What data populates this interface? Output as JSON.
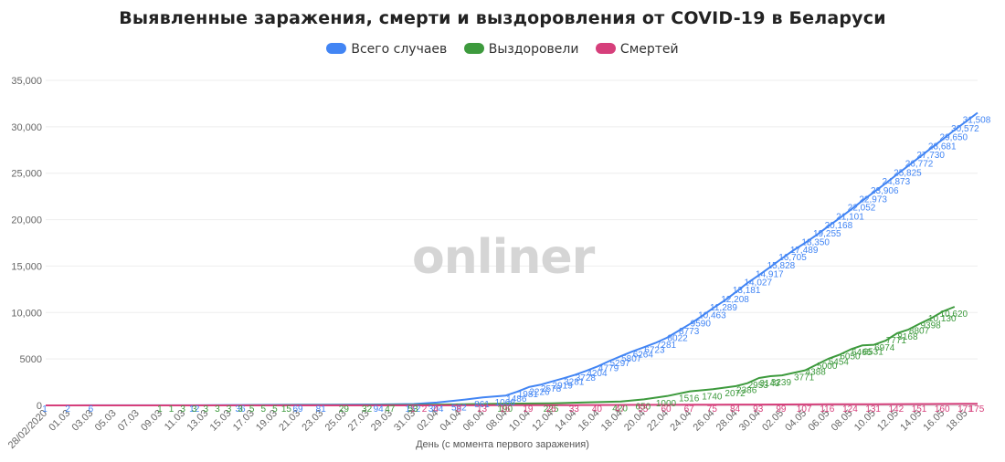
{
  "chart_data": {
    "type": "line",
    "title": "Выявленные заражения, смерти и выздоровления от COVID-19 в Беларуси",
    "xlabel": "День (с момента первого заражения)",
    "ylabel": "",
    "ylim": [
      0,
      35000
    ],
    "y_ticks": [
      "0",
      "5000",
      "10,000",
      "15,000",
      "20,000",
      "25,000",
      "30,000",
      "35,000"
    ],
    "grid": true,
    "legend_position": "top-center",
    "watermark": "onliner",
    "x_tick_labels": [
      "28/02/2020",
      "01.03",
      "03.03",
      "05.03",
      "07.03",
      "09.03",
      "11.03",
      "13.03",
      "15.03",
      "17.03",
      "19.03",
      "21.03",
      "23.03",
      "25.03",
      "27.03",
      "29.03",
      "31.03",
      "02.04",
      "04.04",
      "06.04",
      "08.04",
      "10.04",
      "12.04",
      "14.04",
      "16.04",
      "18.04",
      "20.04",
      "22.04",
      "24.04",
      "26.04",
      "28.04",
      "30.04",
      "02.05",
      "04.05",
      "06.05",
      "08.05",
      "10.05",
      "12.05",
      "14.05",
      "16.05",
      "18.05"
    ],
    "series": [
      {
        "name": "Всего случаев",
        "color": "#4285f4",
        "points": [
          {
            "x": "28/02/2020",
            "y": 1
          },
          {
            "x": "01.03",
            "y": 2
          },
          {
            "x": "03.03",
            "y": 6
          },
          {
            "x": "12.03",
            "y": 12
          },
          {
            "x": "16.03",
            "y": 36
          },
          {
            "x": "21.03",
            "y": 69
          },
          {
            "x": "23.03",
            "y": 81
          },
          {
            "x": "28.03",
            "y": 94
          },
          {
            "x": "31.03",
            "y": 152
          },
          {
            "x": "02.04",
            "y": 304
          },
          {
            "x": "04.04",
            "y": 562
          },
          {
            "x": "06.04",
            "y": 861
          },
          {
            "x": "08.04",
            "y": 1066
          },
          {
            "x": "09.04",
            "y": 1486
          },
          {
            "x": "10.04",
            "y": 1981
          },
          {
            "x": "11.04",
            "y": 2226
          },
          {
            "x": "12.04",
            "y": 2578
          },
          {
            "x": "13.04",
            "y": 2919
          },
          {
            "x": "14.04",
            "y": 3281
          },
          {
            "x": "15.04",
            "y": 3728
          },
          {
            "x": "16.04",
            "y": 4204
          },
          {
            "x": "17.04",
            "y": 4779
          },
          {
            "x": "18.04",
            "y": 5297
          },
          {
            "x": "19.04",
            "y": 5807
          },
          {
            "x": "20.04",
            "y": 6264
          },
          {
            "x": "21.04",
            "y": 6723
          },
          {
            "x": "22.04",
            "y": 7281
          },
          {
            "x": "23.04",
            "y": 8022
          },
          {
            "x": "24.04",
            "y": 8773
          },
          {
            "x": "25.04",
            "y": 9590
          },
          {
            "x": "26.04",
            "y": 10463
          },
          {
            "x": "27.04",
            "y": 11289
          },
          {
            "x": "28.04",
            "y": 12208
          },
          {
            "x": "29.04",
            "y": 13181
          },
          {
            "x": "30.04",
            "y": 14027
          },
          {
            "x": "01.05",
            "y": 14917
          },
          {
            "x": "02.05",
            "y": 15828
          },
          {
            "x": "03.05",
            "y": 16705
          },
          {
            "x": "04.05",
            "y": 17489
          },
          {
            "x": "05.05",
            "y": 18350
          },
          {
            "x": "06.05",
            "y": 19255
          },
          {
            "x": "07.05",
            "y": 20168
          },
          {
            "x": "08.05",
            "y": 21101
          },
          {
            "x": "09.05",
            "y": 22052
          },
          {
            "x": "10.05",
            "y": 22973
          },
          {
            "x": "11.05",
            "y": 23906
          },
          {
            "x": "12.05",
            "y": 24873
          },
          {
            "x": "13.05",
            "y": 25825
          },
          {
            "x": "14.05",
            "y": 26772
          },
          {
            "x": "15.05",
            "y": 27730
          },
          {
            "x": "16.05",
            "y": 28681
          },
          {
            "x": "17.05",
            "y": 29650
          },
          {
            "x": "18.05",
            "y": 30572
          },
          {
            "x": "19.05",
            "y": 31508
          }
        ],
        "labels": [
          "1",
          "2",
          "6",
          "12",
          "36",
          "69",
          "81",
          "94",
          "152",
          "304",
          "562",
          "861",
          "1066",
          "1486",
          "1981",
          "2226",
          "2578",
          "2919",
          "3281",
          "3728",
          "4204",
          "4779",
          "5297",
          "5807",
          "6264",
          "6723",
          "7281",
          "8022",
          "8773",
          "9590",
          "10,463",
          "11,289",
          "12,208",
          "13,181",
          "14,027",
          "14,917",
          "15,828",
          "16,705",
          "17,489",
          "18,350",
          "19,255",
          "20,168",
          "21,101",
          "22,052",
          "22,973",
          "23,906",
          "24,873",
          "25,825",
          "26,772",
          "27,730",
          "28,681",
          "29,650",
          "30,572",
          "31,508"
        ]
      },
      {
        "name": "Выздоровели",
        "color": "#3d9a3d",
        "points": [
          {
            "x": "09.03",
            "y": 1
          },
          {
            "x": "10.03",
            "y": 1
          },
          {
            "x": "11.03",
            "y": 3
          },
          {
            "x": "12.03",
            "y": 3
          },
          {
            "x": "13.03",
            "y": 3
          },
          {
            "x": "14.03",
            "y": 3
          },
          {
            "x": "15.03",
            "y": 3
          },
          {
            "x": "16.03",
            "y": 3
          },
          {
            "x": "17.03",
            "y": 5
          },
          {
            "x": "18.03",
            "y": 5
          },
          {
            "x": "19.03",
            "y": 5
          },
          {
            "x": "20.03",
            "y": 15
          },
          {
            "x": "25.03",
            "y": 29
          },
          {
            "x": "27.03",
            "y": 32
          },
          {
            "x": "29.03",
            "y": 47
          },
          {
            "x": "31.03",
            "y": 53
          },
          {
            "x": "08.04",
            "y": 190
          },
          {
            "x": "12.04",
            "y": 225
          },
          {
            "x": "18.04",
            "y": 420
          },
          {
            "x": "20.04",
            "y": 650
          },
          {
            "x": "22.04",
            "y": 1000
          },
          {
            "x": "24.04",
            "y": 1516
          },
          {
            "x": "26.04",
            "y": 1740
          },
          {
            "x": "28.04",
            "y": 2072
          },
          {
            "x": "29.04",
            "y": 2386
          },
          {
            "x": "30.04",
            "y": 2953
          },
          {
            "x": "01.05",
            "y": 3143
          },
          {
            "x": "02.05",
            "y": 3239
          },
          {
            "x": "04.05",
            "y": 3771
          },
          {
            "x": "05.05",
            "y": 4388
          },
          {
            "x": "06.05",
            "y": 5000
          },
          {
            "x": "07.05",
            "y": 5454
          },
          {
            "x": "08.05",
            "y": 6050
          },
          {
            "x": "09.05",
            "y": 6465
          },
          {
            "x": "10.05",
            "y": 6531
          },
          {
            "x": "11.05",
            "y": 6974
          },
          {
            "x": "12.05",
            "y": 7771
          },
          {
            "x": "13.05",
            "y": 8168
          },
          {
            "x": "14.05",
            "y": 8807
          },
          {
            "x": "15.05",
            "y": 9398
          },
          {
            "x": "16.05",
            "y": 10130
          },
          {
            "x": "17.05",
            "y": 10620
          }
        ],
        "labels": [
          "1",
          "1",
          "3",
          "3",
          "3",
          "3",
          "3",
          "3",
          "5",
          "5",
          "5",
          "15",
          "29",
          "32",
          "47",
          "53",
          "190",
          "225",
          "420",
          "650",
          "1000",
          "1516",
          "1740",
          "2072",
          "2386",
          "2953",
          "3143",
          "3239",
          "3771",
          "4388",
          "5000",
          "5454",
          "6050",
          "6465",
          "6531",
          "6974",
          "7771",
          "8168",
          "8807",
          "9398",
          "10,130",
          "10,620"
        ]
      },
      {
        "name": "Смертей",
        "color": "#d63f7b",
        "points": [
          {
            "x": "31.03",
            "y": 1
          },
          {
            "x": "01.04",
            "y": 2
          },
          {
            "x": "02.04",
            "y": 4
          },
          {
            "x": "04.04",
            "y": 8
          },
          {
            "x": "06.04",
            "y": 13
          },
          {
            "x": "08.04",
            "y": 16
          },
          {
            "x": "10.04",
            "y": 19
          },
          {
            "x": "12.04",
            "y": 26
          },
          {
            "x": "14.04",
            "y": 33
          },
          {
            "x": "16.04",
            "y": 40
          },
          {
            "x": "18.04",
            "y": 47
          },
          {
            "x": "20.04",
            "y": 55
          },
          {
            "x": "22.04",
            "y": 60
          },
          {
            "x": "24.04",
            "y": 67
          },
          {
            "x": "26.04",
            "y": 75
          },
          {
            "x": "28.04",
            "y": 84
          },
          {
            "x": "30.04",
            "y": 93
          },
          {
            "x": "02.05",
            "y": 99
          },
          {
            "x": "04.05",
            "y": 107
          },
          {
            "x": "06.05",
            "y": 116
          },
          {
            "x": "08.05",
            "y": 124
          },
          {
            "x": "10.05",
            "y": 131
          },
          {
            "x": "12.05",
            "y": 142
          },
          {
            "x": "14.05",
            "y": 151
          },
          {
            "x": "16.05",
            "y": 160
          },
          {
            "x": "18.05",
            "y": 171
          },
          {
            "x": "19.05",
            "y": 175
          }
        ],
        "labels": [
          "1",
          "2",
          "4",
          "8",
          "13",
          "16",
          "19",
          "26",
          "33",
          "40",
          "47",
          "55",
          "60",
          "67",
          "75",
          "84",
          "93",
          "99",
          "107",
          "116",
          "124",
          "131",
          "142",
          "151",
          "160",
          "171",
          "175"
        ]
      }
    ]
  }
}
